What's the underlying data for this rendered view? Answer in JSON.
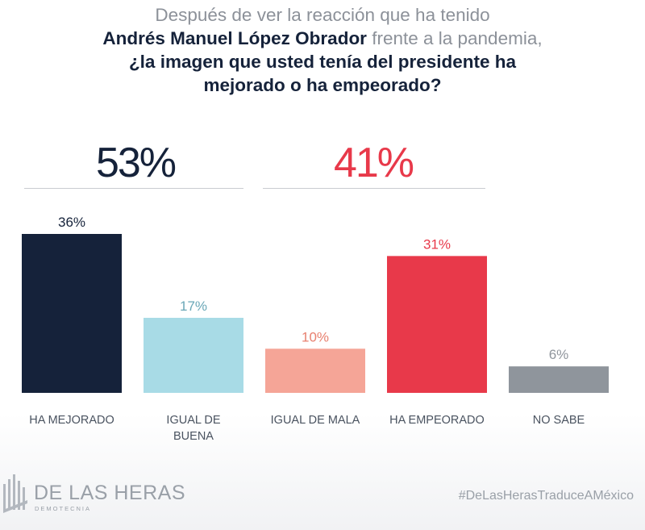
{
  "title": {
    "line1": "Después de ver la reacción que ha tenido",
    "line2_bold": "Andrés Manuel López Obrador",
    "line2_light": " frente a la pandemia,",
    "line3": "¿la imagen que usted tenía del presidente ha",
    "line4": "mejorado o ha empeorado?"
  },
  "groups": [
    {
      "total": "53%",
      "color": "#15223a"
    },
    {
      "total": "41%",
      "color": "#e8394a"
    }
  ],
  "chart_data": {
    "type": "bar",
    "categories": [
      "HA MEJORADO",
      "IGUAL DE BUENA",
      "IGUAL DE MALA",
      "HA EMPEORADO",
      "NO SABE"
    ],
    "category_lines": [
      [
        "HA MEJORADO"
      ],
      [
        "IGUAL DE",
        "BUENA"
      ],
      [
        "IGUAL DE MALA"
      ],
      [
        "HA EMPEORADO"
      ],
      [
        "NO SABE"
      ]
    ],
    "values": [
      36,
      17,
      10,
      31,
      6
    ],
    "value_labels": [
      "36%",
      "17%",
      "10%",
      "31%",
      "6%"
    ],
    "colors": [
      "#15223a",
      "#a8dbe6",
      "#f5a597",
      "#e8394a",
      "#8f959c"
    ],
    "label_colors": [
      "#15223a",
      "#6aa7b7",
      "#e8806f",
      "#e8394a",
      "#8f959c"
    ],
    "ylim": [
      0,
      36
    ]
  },
  "footer": {
    "brand": "DE LAS HERAS",
    "brand_sub": "DEMOTECNIA",
    "hashtag": "#DeLasHerasTraduceAMéxico"
  }
}
